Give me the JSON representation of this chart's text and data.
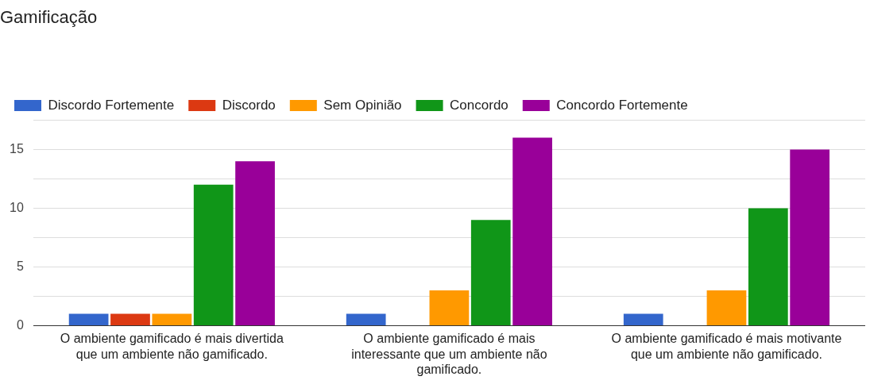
{
  "chart_data": {
    "type": "bar",
    "title": "Gamificação",
    "categories": [
      "O ambiente gamificado é mais divertida que um ambiente não gamificado.",
      "O ambiente gamificado é mais interessante que um ambiente não gamificado.",
      "O ambiente gamificado é mais motivante que um ambiente não gamificado."
    ],
    "series": [
      {
        "name": "Discordo Fortemente",
        "color": "#3366cc",
        "values": [
          1,
          1,
          1
        ]
      },
      {
        "name": "Discordo",
        "color": "#dc3912",
        "values": [
          1,
          0,
          0
        ]
      },
      {
        "name": "Sem Opinião",
        "color": "#ff9900",
        "values": [
          1,
          3,
          3
        ]
      },
      {
        "name": "Concordo",
        "color": "#109618",
        "values": [
          12,
          9,
          10
        ]
      },
      {
        "name": "Concordo Fortemente",
        "color": "#990099",
        "values": [
          14,
          16,
          15
        ]
      }
    ],
    "ylim": [
      0,
      17.5
    ],
    "yticks": [
      0,
      {
        "value": 2.5,
        "label": null
      },
      5,
      {
        "value": 7.5,
        "label": null
      },
      10,
      {
        "value": 12.5,
        "label": null
      },
      15,
      {
        "value": 17.5,
        "label": null
      }
    ],
    "grid": "y",
    "legend": "top left"
  }
}
